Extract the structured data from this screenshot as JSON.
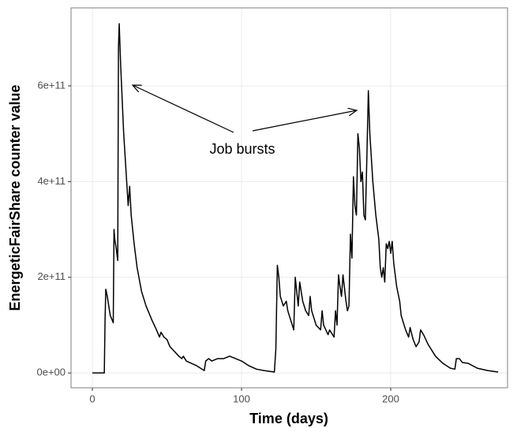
{
  "chart_data": {
    "type": "line",
    "x_label": "Time (days)",
    "y_label": "EnergeticFairShare counter value",
    "annotation": "Job bursts",
    "color": "#000000",
    "grid": true,
    "xlim": [
      -14.3,
      278.3
    ],
    "ylim": [
      -31000000000.0,
      763000000000.0
    ],
    "xticks": [
      0,
      100,
      200
    ],
    "yticks": [
      {
        "value": 0,
        "label": "0e+00"
      },
      {
        "value": 200000000000.0,
        "label": "2e+11"
      },
      {
        "value": 400000000000.0,
        "label": "4e+11"
      },
      {
        "value": 600000000000.0,
        "label": "6e+11"
      }
    ],
    "x": [
      0,
      8,
      8.5,
      9,
      10,
      12,
      14,
      14.5,
      15,
      16,
      17,
      17.5,
      18,
      19,
      21,
      23,
      24,
      25,
      26,
      28,
      30,
      33,
      36,
      40,
      43,
      45,
      46,
      48,
      50,
      52,
      55,
      58,
      60,
      61,
      63,
      70,
      75,
      76,
      78,
      80,
      84,
      88,
      92,
      96,
      100,
      105,
      110,
      115,
      122,
      123,
      124,
      125,
      126,
      128,
      130,
      131,
      133,
      135,
      136,
      137,
      138,
      139,
      140,
      141,
      143,
      145,
      146,
      147,
      150,
      153,
      154,
      155,
      158,
      159,
      162,
      163,
      164,
      165,
      166,
      167,
      168,
      170,
      171,
      172,
      173,
      174,
      175,
      176,
      177,
      178,
      179,
      180,
      181,
      182,
      183,
      184,
      185,
      186,
      188,
      190,
      192,
      193,
      194,
      195,
      196,
      197,
      198,
      199,
      200,
      201,
      202,
      204,
      206,
      207,
      209,
      210,
      212,
      213,
      215,
      217,
      219,
      220,
      222,
      225,
      230,
      235,
      240,
      243,
      244,
      246,
      248,
      252,
      258,
      265,
      272
    ],
    "values": [
      0,
      0,
      110000000000.0,
      175000000000.0,
      160000000000.0,
      120000000000.0,
      105000000000.0,
      300000000000.0,
      280000000000.0,
      260000000000.0,
      235000000000.0,
      680000000000.0,
      730000000000.0,
      640000000000.0,
      500000000000.0,
      400000000000.0,
      350000000000.0,
      390000000000.0,
      330000000000.0,
      270000000000.0,
      220000000000.0,
      170000000000.0,
      140000000000.0,
      110000000000.0,
      90000000000.0,
      75000000000.0,
      85000000000.0,
      75000000000.0,
      70000000000.0,
      55000000000.0,
      45000000000.0,
      35000000000.0,
      30000000000.0,
      35000000000.0,
      25000000000.0,
      15000000000.0,
      5000000000.0,
      25000000000.0,
      30000000000.0,
      25000000000.0,
      30000000000.0,
      30000000000.0,
      35000000000.0,
      30000000000.0,
      25000000000.0,
      15000000000.0,
      8000000000.0,
      5000000000.0,
      2000000000.0,
      50000000000.0,
      225000000000.0,
      200000000000.0,
      160000000000.0,
      140000000000.0,
      150000000000.0,
      130000000000.0,
      110000000000.0,
      90000000000.0,
      200000000000.0,
      170000000000.0,
      140000000000.0,
      190000000000.0,
      170000000000.0,
      150000000000.0,
      130000000000.0,
      120000000000.0,
      160000000000.0,
      130000000000.0,
      100000000000.0,
      90000000000.0,
      130000000000.0,
      100000000000.0,
      80000000000.0,
      90000000000.0,
      75000000000.0,
      130000000000.0,
      100000000000.0,
      205000000000.0,
      180000000000.0,
      160000000000.0,
      205000000000.0,
      150000000000.0,
      130000000000.0,
      140000000000.0,
      290000000000.0,
      240000000000.0,
      410000000000.0,
      350000000000.0,
      330000000000.0,
      500000000000.0,
      470000000000.0,
      400000000000.0,
      420000000000.0,
      330000000000.0,
      320000000000.0,
      450000000000.0,
      590000000000.0,
      500000000000.0,
      400000000000.0,
      330000000000.0,
      280000000000.0,
      220000000000.0,
      200000000000.0,
      220000000000.0,
      190000000000.0,
      270000000000.0,
      260000000000.0,
      275000000000.0,
      250000000000.0,
      275000000000.0,
      230000000000.0,
      180000000000.0,
      150000000000.0,
      120000000000.0,
      100000000000.0,
      90000000000.0,
      75000000000.0,
      95000000000.0,
      70000000000.0,
      55000000000.0,
      65000000000.0,
      90000000000.0,
      80000000000.0,
      60000000000.0,
      35000000000.0,
      20000000000.0,
      10000000000.0,
      8000000000.0,
      30000000000.0,
      30000000000.0,
      22000000000.0,
      20000000000.0,
      10000000000.0,
      5000000000.0,
      2000000000.0
    ]
  }
}
